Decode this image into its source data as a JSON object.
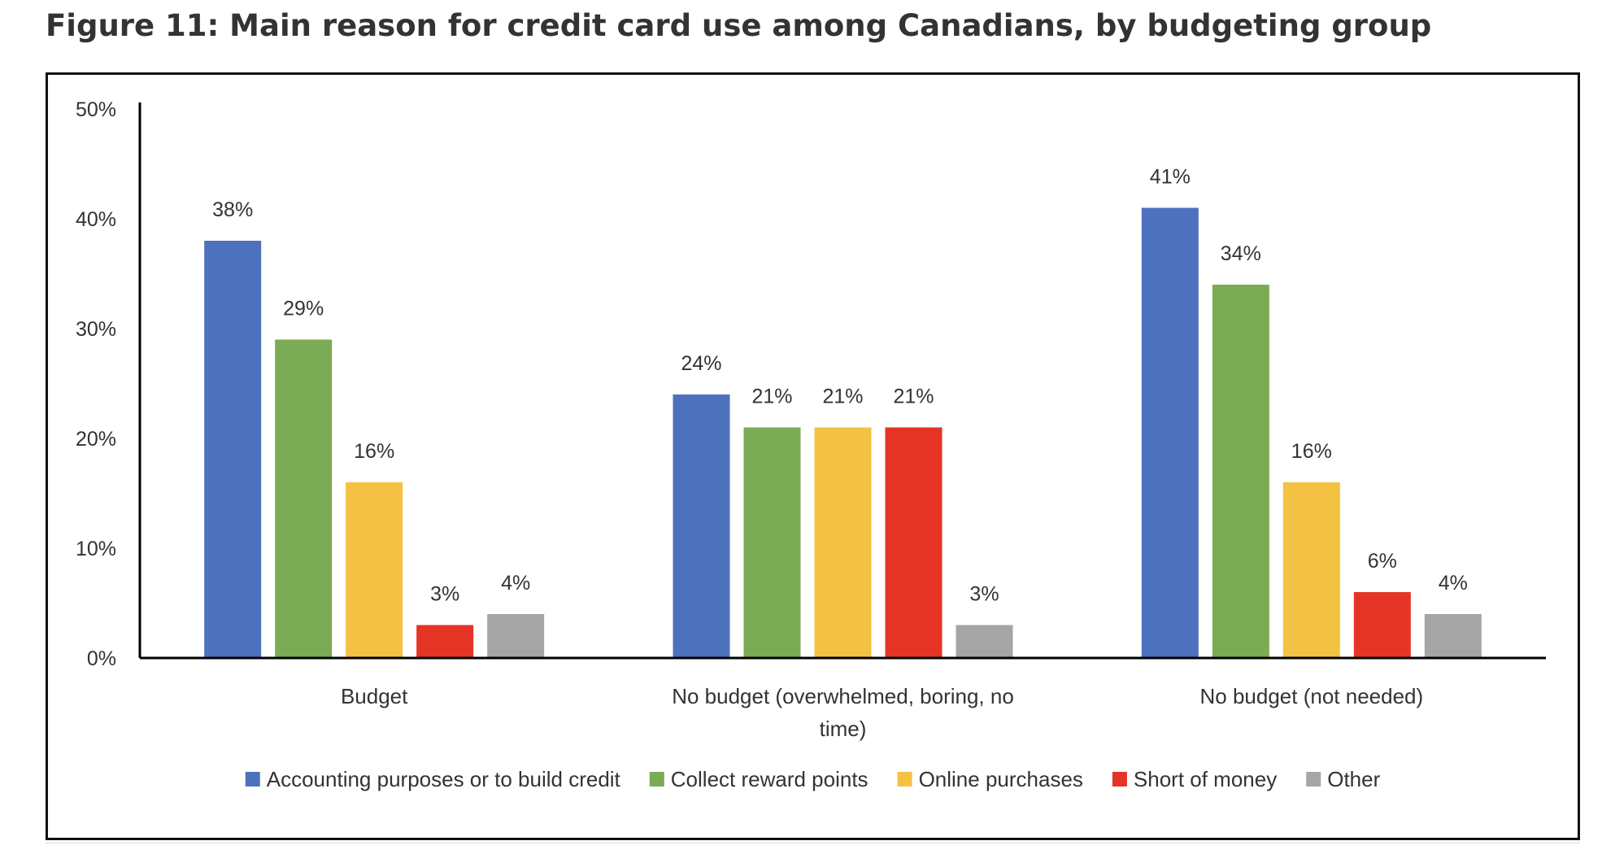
{
  "title": "Figure 11: Main reason for credit card use among Canadians, by budgeting group",
  "chart_data": {
    "type": "bar",
    "categories": [
      [
        "Budget"
      ],
      [
        "No budget (overwhelmed, boring, no",
        "time)"
      ],
      [
        "No budget (not needed)"
      ]
    ],
    "series": [
      {
        "name": "Accounting purposes or to build credit",
        "color": "#4E71BE",
        "values": [
          38,
          24,
          41
        ]
      },
      {
        "name": "Collect reward points",
        "color": "#7BAB55",
        "values": [
          29,
          21,
          34
        ]
      },
      {
        "name": "Online purchases",
        "color": "#F4C243",
        "values": [
          16,
          21,
          16
        ]
      },
      {
        "name": "Short of money",
        "color": "#E53425",
        "values": [
          3,
          21,
          6
        ]
      },
      {
        "name": "Other",
        "color": "#A5A5A5",
        "values": [
          4,
          3,
          4
        ]
      }
    ],
    "ylim": [
      0,
      50
    ],
    "yticks": [
      0,
      10,
      20,
      30,
      40,
      50
    ],
    "ytick_labels": [
      "0%",
      "10%",
      "20%",
      "30%",
      "40%",
      "50%"
    ],
    "value_suffix": "%",
    "grid": false,
    "legend_position": "bottom"
  }
}
